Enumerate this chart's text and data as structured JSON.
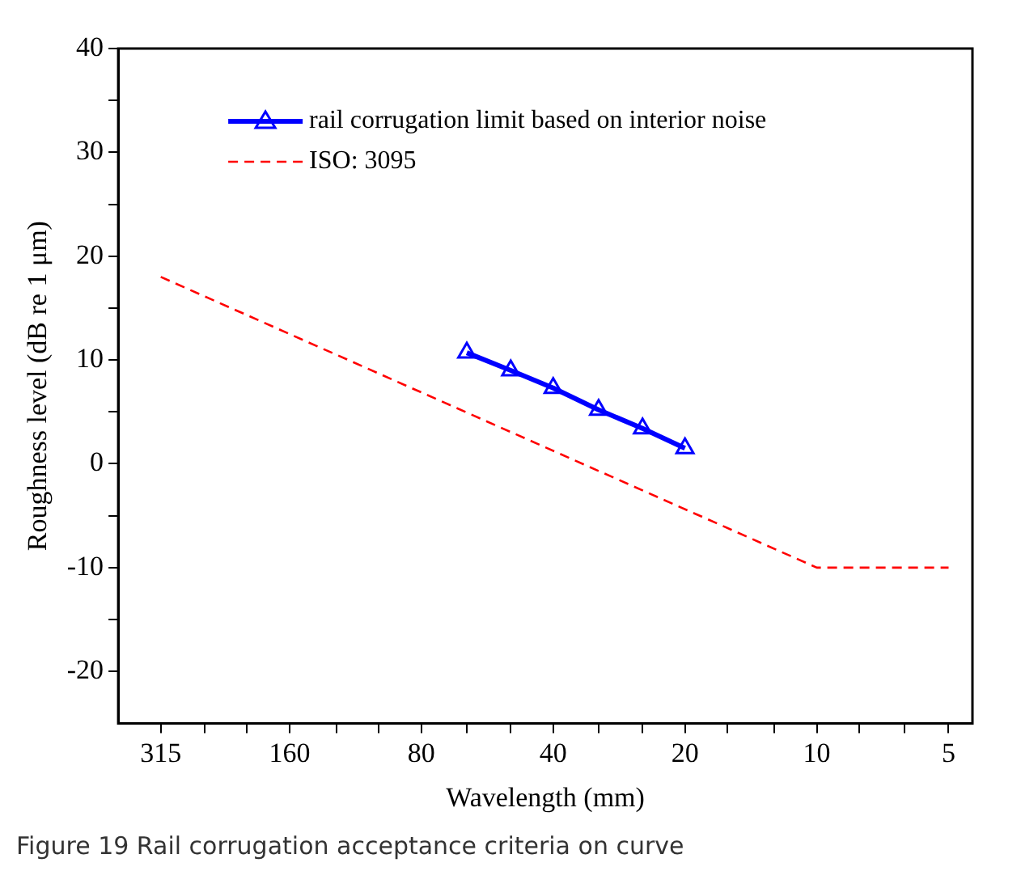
{
  "chart_data": {
    "type": "line",
    "xlabel": "Wavelength (mm)",
    "ylabel": "Roughness level (dB re 1 μm)",
    "log": "x",
    "xlim": [
      394,
      4.41
    ],
    "xticks": [
      315,
      {
        "value": 250,
        "label": null
      },
      {
        "value": 200,
        "label": null
      },
      160,
      {
        "value": 125,
        "label": null
      },
      {
        "value": 100,
        "label": null
      },
      80,
      {
        "value": 63,
        "label": null
      },
      {
        "value": 50,
        "label": null
      },
      40,
      {
        "value": 31.5,
        "label": null
      },
      {
        "value": 25,
        "label": null
      },
      20,
      {
        "value": 16,
        "label": null
      },
      {
        "value": 12.5,
        "label": null
      },
      10,
      {
        "value": 8,
        "label": null
      },
      {
        "value": 6.3,
        "label": null
      },
      5
    ],
    "ylim": [
      -25,
      40
    ],
    "yticks": [
      -20,
      {
        "value": -15,
        "label": null
      },
      -10,
      {
        "value": -5,
        "label": null
      },
      0,
      {
        "value": 5,
        "label": null
      },
      10,
      {
        "value": 15,
        "label": null
      },
      20,
      {
        "value": 25,
        "label": null
      },
      30,
      {
        "value": 35,
        "label": null
      },
      40
    ],
    "grid": false,
    "legend": "top left",
    "series": [
      {
        "name": "rail corrugation limit based on interior noise",
        "color": "#0000ff",
        "marker": "triangle",
        "line_style": "solid",
        "x": [
          63,
          50,
          40,
          31.5,
          25,
          20
        ],
        "values": [
          10.7,
          9.0,
          7.3,
          5.2,
          3.4,
          1.5
        ]
      },
      {
        "name": "ISO: 3095",
        "color": "#ff0000",
        "marker": "none",
        "line_style": "dashed",
        "x": [
          315,
          10,
          5
        ],
        "values": [
          18,
          -10,
          -10
        ]
      }
    ],
    "annotations": [
      "Figure 19 Rail corrugation acceptance criteria on curve"
    ]
  }
}
